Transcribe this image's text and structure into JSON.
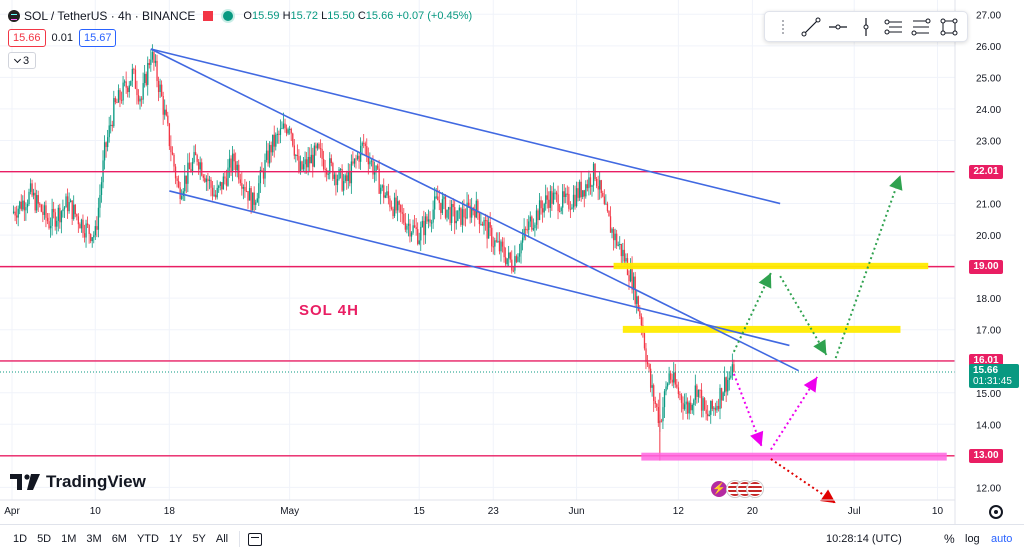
{
  "header": {
    "symbol_title": "SOL / TetherUS · 4h · BINANCE",
    "ohlc": {
      "o_label": "O",
      "o": "15.59",
      "h_label": "H",
      "h": "15.72",
      "l_label": "L",
      "l": "15.50",
      "c_label": "C",
      "c": "15.66",
      "change": "+0.07 (+0.45%)"
    },
    "bid": "15.66",
    "spread": "0.01",
    "ask": "15.67",
    "indicator_count": "3"
  },
  "drawing_tools": [
    "grip",
    "trend-line",
    "horizontal-ray",
    "vertical-line",
    "parallel-channel",
    "fib-retracement",
    "rectangle"
  ],
  "annotation": {
    "text": "SOL  4H"
  },
  "current_price": {
    "price": "15.66",
    "countdown": "01:31:45"
  },
  "colors": {
    "up": "#089981",
    "down": "#f23645",
    "level": "#e91e63",
    "trend": "#4169e1",
    "yellow_zone": "#ffeb00",
    "magenta_zone": "#ff66e0",
    "green_arrow": "#2fa24f",
    "magenta_arrow": "#ee00ee",
    "red_arrow": "#e00000"
  },
  "chart_data": {
    "type": "candlestick",
    "y_scale": "linear",
    "ylim": [
      11.6,
      27.2
    ],
    "xlim": [
      "2024-04-01",
      "2024-07-12"
    ],
    "y_ticks": [
      "12.00",
      "13.00",
      "14.00",
      "15.00",
      "16.00",
      "17.00",
      "18.00",
      "19.00",
      "20.00",
      "21.00",
      "22.00",
      "23.00",
      "24.00",
      "25.00",
      "26.00",
      "27.00"
    ],
    "x_ticks": [
      {
        "label": "Apr",
        "date": "2024-04-01"
      },
      {
        "label": "10",
        "date": "2024-04-10"
      },
      {
        "label": "18",
        "date": "2024-04-18"
      },
      {
        "label": "May",
        "date": "2024-05-01"
      },
      {
        "label": "15",
        "date": "2024-05-15"
      },
      {
        "label": "23",
        "date": "2024-05-23"
      },
      {
        "label": "Jun",
        "date": "2024-06-01"
      },
      {
        "label": "12",
        "date": "2024-06-12"
      },
      {
        "label": "20",
        "date": "2024-06-20"
      },
      {
        "label": "Jul",
        "date": "2024-07-01"
      },
      {
        "label": "10",
        "date": "2024-07-10"
      }
    ],
    "price_path": [
      [
        "2024-04-01",
        20.7
      ],
      [
        "2024-04-03",
        21.3
      ],
      [
        "2024-04-05",
        20.4
      ],
      [
        "2024-04-07",
        21.0
      ],
      [
        "2024-04-09",
        20.2
      ],
      [
        "2024-04-10",
        20.0
      ],
      [
        "2024-04-11",
        22.6
      ],
      [
        "2024-04-12",
        24.0
      ],
      [
        "2024-04-14",
        25.1
      ],
      [
        "2024-04-15",
        24.3
      ],
      [
        "2024-04-16",
        25.8
      ],
      [
        "2024-04-17",
        24.6
      ],
      [
        "2024-04-18",
        23.0
      ],
      [
        "2024-04-19",
        21.4
      ],
      [
        "2024-04-21",
        22.5
      ],
      [
        "2024-04-23",
        21.2
      ],
      [
        "2024-04-25",
        22.4
      ],
      [
        "2024-04-27",
        21.0
      ],
      [
        "2024-04-29",
        22.8
      ],
      [
        "2024-05-01",
        23.6
      ],
      [
        "2024-05-02",
        22.0
      ],
      [
        "2024-05-04",
        22.6
      ],
      [
        "2024-05-07",
        21.6
      ],
      [
        "2024-05-09",
        22.9
      ],
      [
        "2024-05-11",
        21.4
      ],
      [
        "2024-05-13",
        20.6
      ],
      [
        "2024-05-15",
        20.0
      ],
      [
        "2024-05-17",
        21.1
      ],
      [
        "2024-05-19",
        20.5
      ],
      [
        "2024-05-21",
        20.9
      ],
      [
        "2024-05-23",
        19.8
      ],
      [
        "2024-05-25",
        19.1
      ],
      [
        "2024-05-27",
        20.4
      ],
      [
        "2024-05-29",
        21.2
      ],
      [
        "2024-05-31",
        21.0
      ],
      [
        "2024-06-02",
        21.6
      ],
      [
        "2024-06-03",
        22.0
      ],
      [
        "2024-06-04",
        20.8
      ],
      [
        "2024-06-05",
        20.0
      ],
      [
        "2024-06-06",
        19.4
      ],
      [
        "2024-06-07",
        18.6
      ],
      [
        "2024-06-08",
        17.3
      ],
      [
        "2024-06-09",
        15.2
      ],
      [
        "2024-06-10",
        14.1
      ],
      [
        "2024-06-11",
        15.6
      ],
      [
        "2024-06-12",
        15.0
      ],
      [
        "2024-06-13",
        14.5
      ],
      [
        "2024-06-14",
        15.2
      ],
      [
        "2024-06-15",
        14.2
      ],
      [
        "2024-06-16",
        14.6
      ],
      [
        "2024-06-17",
        15.3
      ],
      [
        "2024-06-18",
        15.66
      ]
    ],
    "horizontal_levels": [
      {
        "price": "22.01"
      },
      {
        "price": "19.00"
      },
      {
        "price": "16.01"
      },
      {
        "price": "13.00"
      }
    ],
    "trend_lines": [
      {
        "from": [
          "2024-04-16",
          25.9
        ],
        "to": [
          "2024-06-23",
          21.0
        ]
      },
      {
        "from": [
          "2024-04-16",
          25.9
        ],
        "to": [
          "2024-06-25",
          15.7
        ]
      },
      {
        "from": [
          "2024-04-18",
          21.4
        ],
        "to": [
          "2024-06-24",
          16.5
        ]
      }
    ],
    "zones": [
      {
        "color": "yellow",
        "from": "2024-06-05",
        "to": "2024-07-09",
        "low": 18.92,
        "high": 19.12
      },
      {
        "color": "yellow",
        "from": "2024-06-06",
        "to": "2024-07-06",
        "low": 16.9,
        "high": 17.12
      },
      {
        "color": "magenta",
        "from": "2024-06-08",
        "to": "2024-07-11",
        "low": 12.85,
        "high": 13.1
      }
    ],
    "projection_arrows": [
      {
        "color": "green",
        "from": [
          "2024-06-18",
          16.3
        ],
        "to": [
          "2024-06-22",
          18.8
        ]
      },
      {
        "color": "green",
        "from": [
          "2024-06-23",
          18.7
        ],
        "to": [
          "2024-06-28",
          16.2
        ]
      },
      {
        "color": "green",
        "from": [
          "2024-06-29",
          16.1
        ],
        "to": [
          "2024-07-06",
          21.9
        ]
      },
      {
        "color": "magenta",
        "from": [
          "2024-06-18",
          15.6
        ],
        "to": [
          "2024-06-21",
          13.3
        ]
      },
      {
        "color": "magenta",
        "from": [
          "2024-06-22",
          13.2
        ],
        "to": [
          "2024-06-27",
          15.5
        ]
      },
      {
        "color": "red",
        "from": [
          "2024-06-22",
          12.9
        ],
        "to": [
          "2024-06-29",
          11.5
        ]
      }
    ]
  },
  "branding": {
    "logo_text": "TradingView"
  },
  "timeframes": [
    "1D",
    "5D",
    "1M",
    "3M",
    "6M",
    "YTD",
    "1Y",
    "5Y",
    "All"
  ],
  "footer": {
    "clock": "10:28:14 (UTC)",
    "percent_label": "%",
    "log_label": "log",
    "auto_label": "auto"
  }
}
